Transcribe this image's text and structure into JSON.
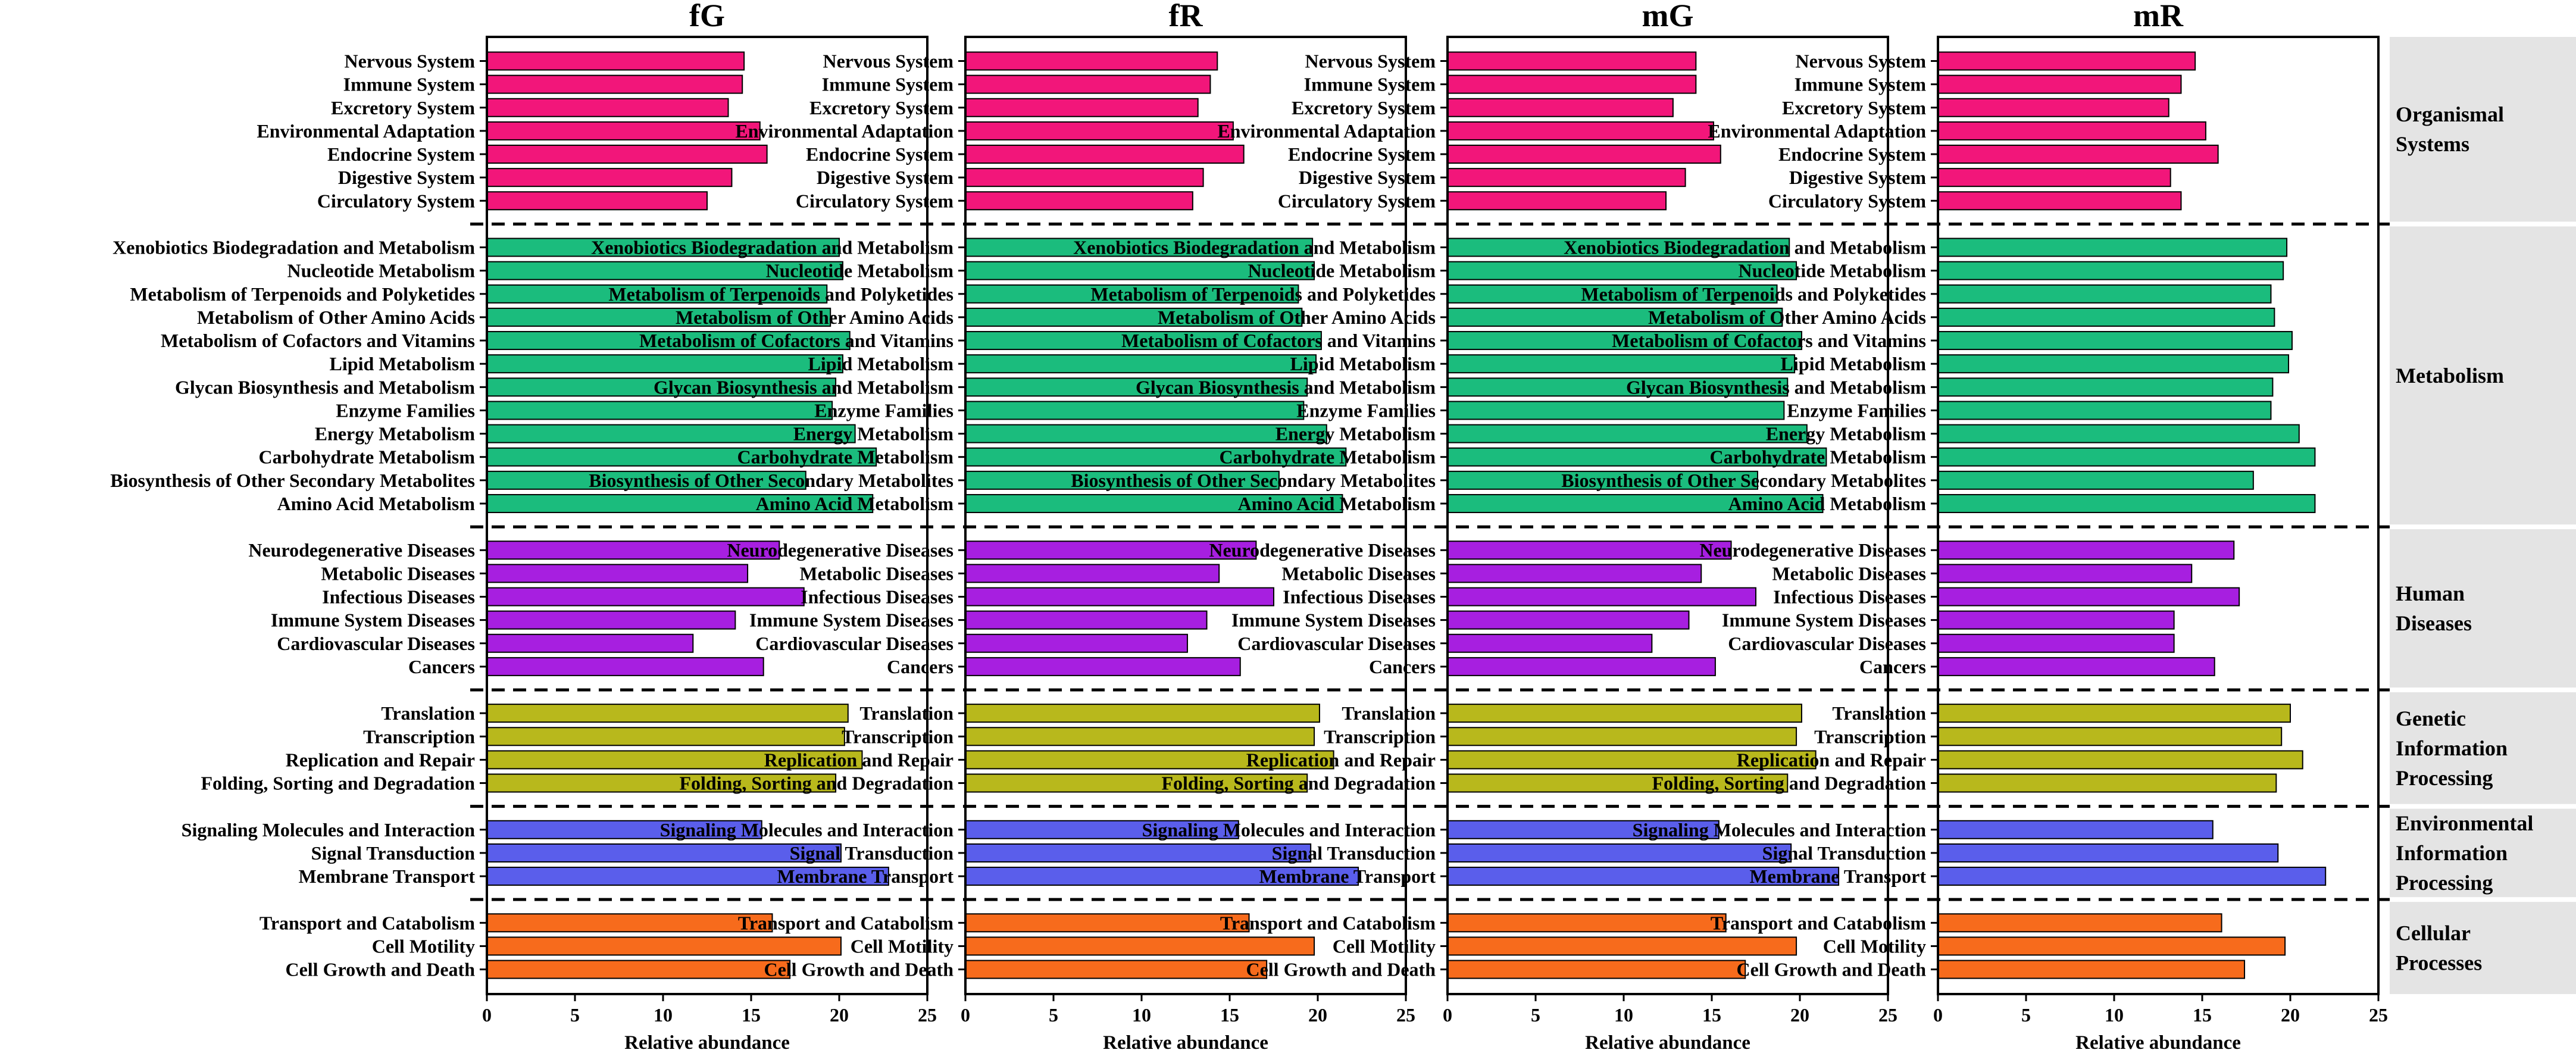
{
  "chart_data": {
    "type": "bar",
    "orientation": "horizontal",
    "xlabel": "Relative abundance",
    "xlim": [
      0,
      25
    ],
    "xticks": [
      "0",
      "5",
      "10",
      "15",
      "20",
      "25"
    ],
    "panels": [
      "fG",
      "fR",
      "mG",
      "mR"
    ],
    "groups": [
      {
        "name": "Organismal Systems",
        "label_lines": [
          "Organismal",
          "Systems"
        ],
        "color": "#F2167A",
        "categories": [
          "Nervous System",
          "Immune System",
          "Excretory System",
          "Environmental Adaptation",
          "Endocrine System",
          "Digestive System",
          "Circulatory System"
        ],
        "values": {
          "fG": [
            14.6,
            14.5,
            13.7,
            15.5,
            15.9,
            13.9,
            12.5
          ],
          "fR": [
            14.3,
            13.9,
            13.2,
            15.2,
            15.8,
            13.5,
            12.9
          ],
          "mG": [
            14.1,
            14.1,
            12.8,
            15.1,
            15.5,
            13.5,
            12.4
          ],
          "mR": [
            14.6,
            13.8,
            13.1,
            15.2,
            15.9,
            13.2,
            13.8
          ]
        }
      },
      {
        "name": "Metabolism",
        "label_lines": [
          "Metabolism"
        ],
        "color": "#1BBC7D",
        "categories": [
          "Xenobiotics Biodegradation and Metabolism",
          "Nucleotide Metabolism",
          "Metabolism of Terpenoids and Polyketides",
          "Metabolism of Other Amino Acids",
          "Metabolism of Cofactors and Vitamins",
          "Lipid Metabolism",
          "Glycan Biosynthesis and Metabolism",
          "Enzyme Families",
          "Energy Metabolism",
          "Carbohydrate Metabolism",
          "Biosynthesis of Other Secondary Metabolites",
          "Amino Acid Metabolism"
        ],
        "values": {
          "fG": [
            20.0,
            20.2,
            19.3,
            19.5,
            20.6,
            20.2,
            19.8,
            19.6,
            20.9,
            22.1,
            18.1,
            21.9
          ],
          "fR": [
            19.7,
            19.8,
            18.9,
            19.1,
            20.2,
            19.9,
            19.4,
            19.2,
            20.5,
            21.6,
            17.8,
            21.4
          ],
          "mG": [
            19.4,
            19.8,
            18.7,
            19.0,
            20.1,
            19.7,
            19.3,
            19.1,
            20.4,
            21.5,
            17.6,
            21.3
          ],
          "mR": [
            19.8,
            19.6,
            18.9,
            19.1,
            20.1,
            19.9,
            19.0,
            18.9,
            20.5,
            21.4,
            17.9,
            21.4
          ]
        }
      },
      {
        "name": "Human Diseases",
        "label_lines": [
          "Human",
          "Diseases"
        ],
        "color": "#A71FE0",
        "categories": [
          "Neurodegenerative Diseases",
          "Metabolic Diseases",
          "Infectious Diseases",
          "Immune System Diseases",
          "Cardiovascular Diseases",
          "Cancers"
        ],
        "values": {
          "fG": [
            16.6,
            14.8,
            18.0,
            14.1,
            11.7,
            15.7
          ],
          "fR": [
            16.5,
            14.4,
            17.5,
            13.7,
            12.6,
            15.6
          ],
          "mG": [
            16.1,
            14.4,
            17.5,
            13.7,
            11.6,
            15.2
          ],
          "mR": [
            16.8,
            14.4,
            17.1,
            13.4,
            13.4,
            15.7
          ]
        }
      },
      {
        "name": "Genetic Information Processing",
        "label_lines": [
          "Genetic",
          "Information",
          "Processing"
        ],
        "color": "#B8B81C",
        "categories": [
          "Translation",
          "Transcription",
          "Replication and Repair",
          "Folding, Sorting and Degradation"
        ],
        "values": {
          "fG": [
            20.5,
            20.3,
            21.3,
            19.8
          ],
          "fR": [
            20.1,
            19.8,
            20.9,
            19.4
          ],
          "mG": [
            20.1,
            19.8,
            20.9,
            19.3
          ],
          "mR": [
            20.0,
            19.5,
            20.7,
            19.2
          ]
        }
      },
      {
        "name": "Environmental Information Processing",
        "label_lines": [
          "Environmental",
          "Information",
          "Processing"
        ],
        "color": "#5A5EEB",
        "categories": [
          "Signaling Molecules and Interaction",
          "Signal Transduction",
          "Membrane Transport"
        ],
        "values": {
          "fG": [
            15.6,
            20.1,
            22.8
          ],
          "fR": [
            15.5,
            19.6,
            22.3
          ],
          "mG": [
            15.4,
            19.5,
            22.2
          ],
          "mR": [
            15.6,
            19.3,
            22.0
          ]
        }
      },
      {
        "name": "Cellular Processes",
        "label_lines": [
          "Cellular",
          "Processes"
        ],
        "color": "#F76B1C",
        "categories": [
          "Transport and Catabolism",
          "Cell Motility",
          "Cell Growth and Death"
        ],
        "values": {
          "fG": [
            16.2,
            20.1,
            17.2
          ],
          "fR": [
            16.1,
            19.8,
            17.1
          ],
          "mG": [
            15.8,
            19.8,
            16.9
          ],
          "mR": [
            16.1,
            19.7,
            17.4
          ]
        }
      }
    ]
  }
}
